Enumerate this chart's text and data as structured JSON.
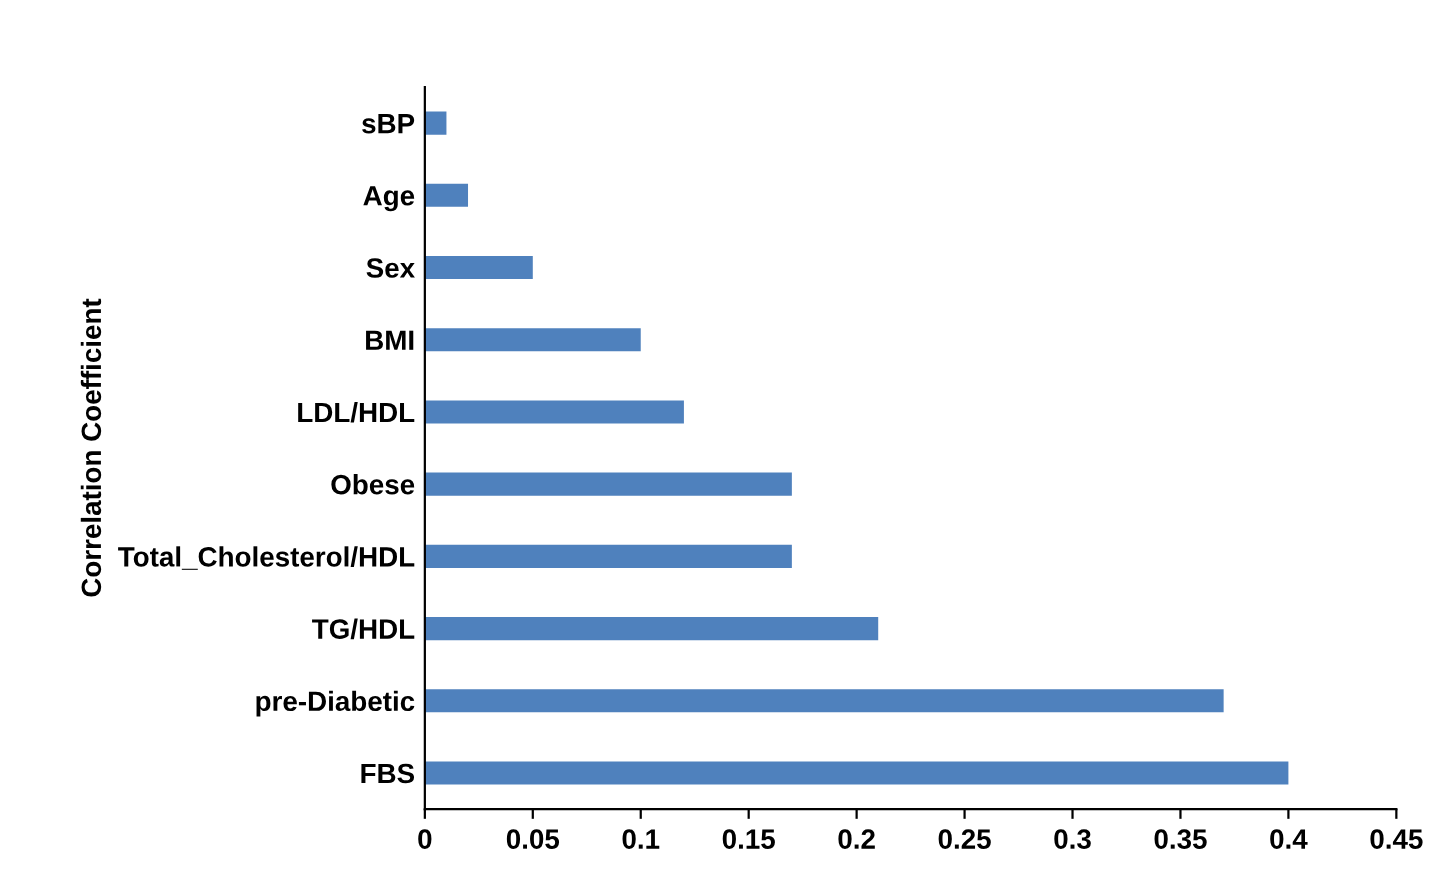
{
  "chart_data": {
    "type": "bar",
    "orientation": "horizontal",
    "ylabel": "Correlation Coefficient",
    "categories": [
      "sBP",
      "Age",
      "Sex",
      "BMI",
      "LDL/HDL",
      "Obese",
      "Total_Cholesterol/HDL",
      "TG/HDL",
      "pre-Diabetic",
      "FBS"
    ],
    "values": [
      0.01,
      0.02,
      0.05,
      0.1,
      0.12,
      0.17,
      0.17,
      0.21,
      0.37,
      0.4
    ],
    "color": "#4f81bd",
    "xlim": [
      0,
      0.45
    ],
    "xticks": [
      0,
      0.05,
      0.1,
      0.15,
      0.2,
      0.25,
      0.3,
      0.35,
      0.4,
      0.45
    ],
    "grid": false,
    "legend": false
  }
}
